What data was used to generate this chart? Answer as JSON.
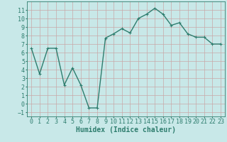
{
  "x": [
    0,
    1,
    2,
    3,
    4,
    5,
    6,
    7,
    8,
    9,
    10,
    11,
    12,
    13,
    14,
    15,
    16,
    17,
    18,
    19,
    20,
    21,
    22,
    23
  ],
  "y": [
    6.5,
    3.5,
    6.5,
    6.5,
    2.2,
    4.2,
    2.2,
    -0.5,
    -0.5,
    7.7,
    8.2,
    8.8,
    8.3,
    10.0,
    10.5,
    11.2,
    10.5,
    9.2,
    9.5,
    8.2,
    7.8,
    7.8,
    7.0,
    7.0
  ],
  "line_color": "#2e7d6e",
  "marker": "+",
  "bg_color": "#c8e8e8",
  "grid_color": "#b0d0d0",
  "xlabel": "Humidex (Indice chaleur)",
  "xlabel_fontsize": 7,
  "ylim": [
    -1.5,
    12
  ],
  "xlim": [
    -0.5,
    23.5
  ],
  "yticks": [
    -1,
    0,
    1,
    2,
    3,
    4,
    5,
    6,
    7,
    8,
    9,
    10,
    11
  ],
  "xticks": [
    0,
    1,
    2,
    3,
    4,
    5,
    6,
    7,
    8,
    9,
    10,
    11,
    12,
    13,
    14,
    15,
    16,
    17,
    18,
    19,
    20,
    21,
    22,
    23
  ],
  "tick_fontsize": 6,
  "linewidth": 1.0,
  "markersize": 3,
  "markeredgewidth": 0.8
}
